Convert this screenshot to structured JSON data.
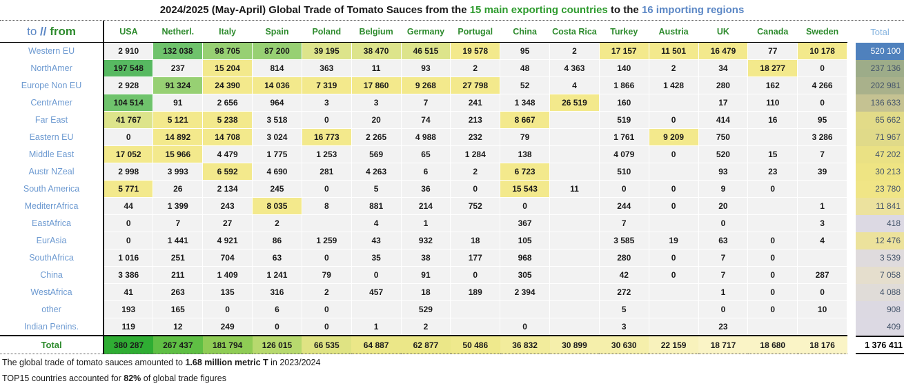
{
  "title": {
    "prefix": "2024/2025 (May-April) Global Trade of Tomato Sauces from the ",
    "exporters": "15 main exporting countries",
    "middle": " to the ",
    "importers": "16 importing regions"
  },
  "corner": {
    "to": "to",
    "sep": " // ",
    "from": "from"
  },
  "chart_data": {
    "type": "heatmap-table",
    "unit": "metric T",
    "columns": [
      "USA",
      "Netherl.",
      "Italy",
      "Spain",
      "Poland",
      "Belgium",
      "Germany",
      "Portugal",
      "China",
      "Costa Rica",
      "Turkey",
      "Austria",
      "UK",
      "Canada",
      "Sweden"
    ],
    "rows": [
      {
        "label": "Western EU",
        "values": [
          2910,
          132038,
          98705,
          87200,
          39195,
          38470,
          46515,
          19578,
          95,
          2,
          17157,
          11501,
          16479,
          77,
          10178
        ],
        "total": 520100,
        "total_color": "#4f81bd"
      },
      {
        "label": "NorthAmer",
        "values": [
          197548,
          237,
          15204,
          814,
          363,
          11,
          93,
          2,
          48,
          4363,
          140,
          2,
          34,
          18277,
          0
        ],
        "total": 237136,
        "total_color": "#9dac89"
      },
      {
        "label": "Europe Non EU",
        "values": [
          2928,
          91324,
          24390,
          14036,
          7319,
          17860,
          9268,
          27798,
          52,
          4,
          1866,
          1428,
          280,
          162,
          4266
        ],
        "total": 202981,
        "total_color": "#a9b18b"
      },
      {
        "label": "CentrAmer",
        "values": [
          104514,
          91,
          2656,
          964,
          3,
          3,
          7,
          241,
          1348,
          26519,
          160,
          null,
          17,
          110,
          0
        ],
        "total": 136633,
        "total_color": "#c5c292"
      },
      {
        "label": "Far East",
        "values": [
          41767,
          5121,
          5238,
          3518,
          0,
          20,
          74,
          213,
          8667,
          null,
          519,
          0,
          414,
          16,
          95
        ],
        "total": 65662,
        "total_color": "#e2db88"
      },
      {
        "label": "Eastern EU",
        "values": [
          0,
          14892,
          14708,
          3024,
          16773,
          2265,
          4988,
          232,
          79,
          null,
          1761,
          9209,
          750,
          null,
          3286
        ],
        "total": 71967,
        "total_color": "#e0da89"
      },
      {
        "label": "Middle East",
        "values": [
          17052,
          15966,
          4479,
          1775,
          1253,
          569,
          65,
          1284,
          138,
          null,
          4079,
          0,
          520,
          15,
          7
        ],
        "total": 47202,
        "total_color": "#eae184"
      },
      {
        "label": "Austr NZeal",
        "values": [
          2998,
          3993,
          6592,
          4690,
          281,
          4263,
          6,
          2,
          6723,
          null,
          510,
          null,
          93,
          23,
          39
        ],
        "total": 30213,
        "total_color": "#eee483"
      },
      {
        "label": "South America",
        "values": [
          5771,
          26,
          2134,
          245,
          0,
          5,
          36,
          0,
          15543,
          11,
          0,
          0,
          9,
          0,
          null
        ],
        "total": 23780,
        "total_color": "#f0e586"
      },
      {
        "label": "MediterrAfrica",
        "values": [
          44,
          1399,
          243,
          8035,
          8,
          881,
          214,
          752,
          0,
          null,
          244,
          0,
          20,
          null,
          1
        ],
        "total": 11841,
        "total_color": "#ece29e"
      },
      {
        "label": "EastAfrica",
        "values": [
          0,
          7,
          27,
          2,
          null,
          4,
          1,
          null,
          367,
          null,
          7,
          null,
          0,
          null,
          3
        ],
        "total": 418,
        "total_color": "#dcd9e3"
      },
      {
        "label": "EurAsia",
        "values": [
          0,
          1441,
          4921,
          86,
          1259,
          43,
          932,
          18,
          105,
          null,
          3585,
          19,
          63,
          0,
          4
        ],
        "total": 12476,
        "total_color": "#ece29c"
      },
      {
        "label": "SouthAfrica",
        "values": [
          1016,
          251,
          704,
          63,
          0,
          35,
          38,
          177,
          968,
          null,
          280,
          0,
          7,
          0,
          null
        ],
        "total": 3539,
        "total_color": "#dfdbdd"
      },
      {
        "label": "China",
        "values": [
          3386,
          211,
          1409,
          1241,
          79,
          0,
          91,
          0,
          305,
          null,
          42,
          0,
          7,
          0,
          287
        ],
        "total": 7058,
        "total_color": "#e5decd"
      },
      {
        "label": "WestAfrica",
        "values": [
          41,
          263,
          135,
          316,
          2,
          457,
          18,
          189,
          2394,
          null,
          272,
          null,
          1,
          0,
          0
        ],
        "total": 4088,
        "total_color": "#e0dcd8"
      },
      {
        "label": "other",
        "values": [
          193,
          165,
          0,
          6,
          0,
          null,
          529,
          null,
          null,
          null,
          5,
          null,
          0,
          0,
          10
        ],
        "total": 908,
        "total_color": "#dcd9e2"
      },
      {
        "label": "Indian Penins.",
        "values": [
          119,
          12,
          249,
          0,
          0,
          1,
          2,
          null,
          0,
          null,
          3,
          null,
          23,
          null,
          null
        ],
        "total": 409,
        "total_color": "#dcd9e3"
      }
    ],
    "total_row": {
      "label": "Total",
      "values": [
        380287,
        267437,
        181794,
        126015,
        66535,
        64887,
        62877,
        50486,
        36832,
        30899,
        30630,
        22159,
        18717,
        18680,
        18176
      ],
      "colors": [
        "#2fad33",
        "#5fbf44",
        "#8fcc55",
        "#b7d96e",
        "#dfe383",
        "#ebe788",
        "#ebe788",
        "#efe98d",
        "#f2ec9c",
        "#f5efab",
        "#f5efab",
        "#f8f2bc",
        "#faf4c6",
        "#faf4c6",
        "#faf4c6"
      ]
    },
    "total_header": "Total",
    "grand_total": 1376411,
    "heat_scale": {
      "blank_or_low": "#f2f2f2",
      "gte_5000": "#f3e98c",
      "gte_30000": "#dde48b",
      "gte_80000": "#97d073",
      "gte_100000": "#6fc36c",
      "gte_150000": "#57b961"
    }
  },
  "footnotes": {
    "line1": {
      "pre": "The global trade of tomato sauces amounted to ",
      "bold": "1.68 million metric T",
      "post": " in 2023/2024"
    },
    "line2": {
      "pre": "TOP15 countries accounted for ",
      "bold": "82%",
      "post": " of global trade figures"
    }
  },
  "colors": {
    "title_green": "#2e9b2e",
    "title_blue": "#5b87c5",
    "header_green": "#2e8b2e",
    "row_label_blue": "#6d9ad1",
    "total_header_blue": "#85b3df",
    "total_column_text": "#44546a"
  }
}
